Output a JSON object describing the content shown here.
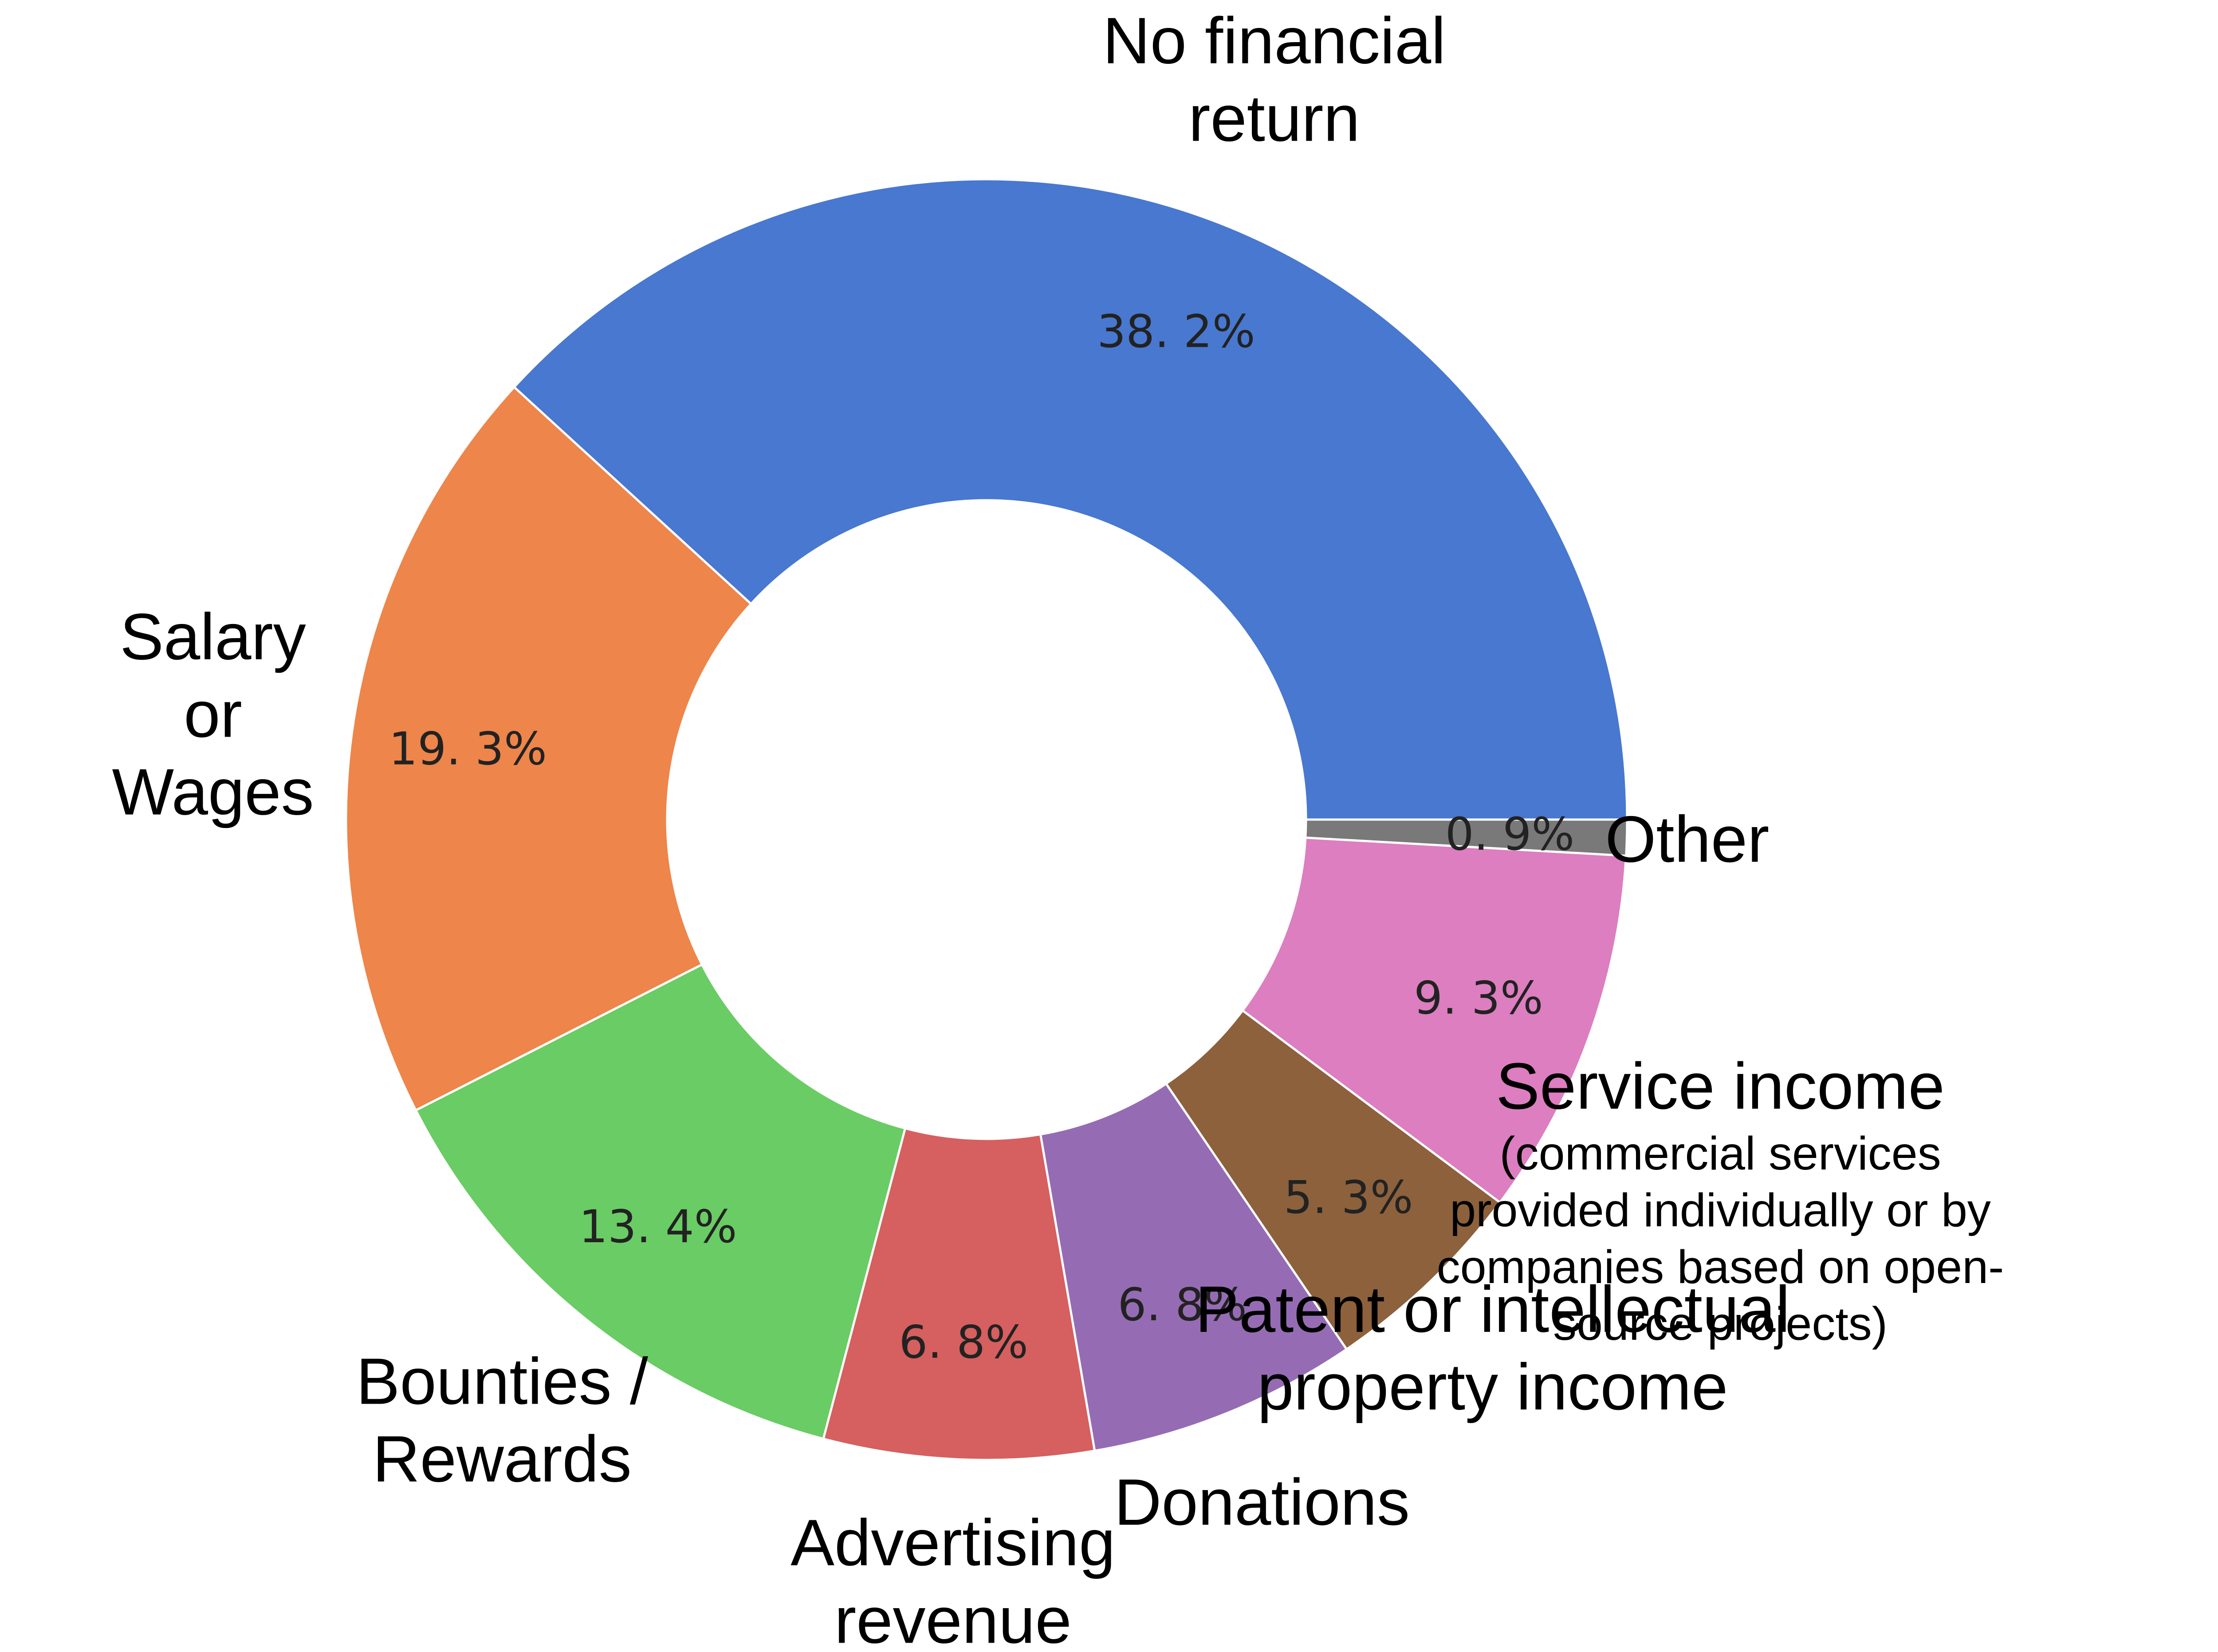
{
  "chart_data": {
    "type": "pie",
    "style": "donut",
    "title": "",
    "slices": [
      {
        "label": [
          "No financial",
          "return"
        ],
        "value": 38.2,
        "pct_label": "38. 2%",
        "color": "#4878CF"
      },
      {
        "label": [
          "Salary",
          "or",
          "Wages"
        ],
        "value": 19.3,
        "pct_label": "19. 3%",
        "color": "#EE854A"
      },
      {
        "label": [
          "Bounties /",
          "Rewards"
        ],
        "value": 13.4,
        "pct_label": "13. 4%",
        "color": "#6ACC64"
      },
      {
        "label": [
          "Advertising",
          "revenue"
        ],
        "value": 6.8,
        "pct_label": "6. 8%",
        "color": "#D65F5F"
      },
      {
        "label": [
          "Donations"
        ],
        "value": 6.8,
        "pct_label": "6. 8%",
        "color": "#956CB4"
      },
      {
        "label": [
          "Patent or intellectual",
          "property income"
        ],
        "value": 5.3,
        "pct_label": "5. 3%",
        "color": "#8C613C"
      },
      {
        "label": [
          "Service income"
        ],
        "sublabel": [
          "(commercial services",
          "provided individually or by",
          "companies based on open-",
          "source projects)"
        ],
        "value": 9.3,
        "pct_label": "9. 3%",
        "color": "#DC7EC0"
      },
      {
        "label": [
          "Other"
        ],
        "value": 0.9,
        "pct_label": "0. 9%",
        "color": "#797979"
      }
    ]
  }
}
